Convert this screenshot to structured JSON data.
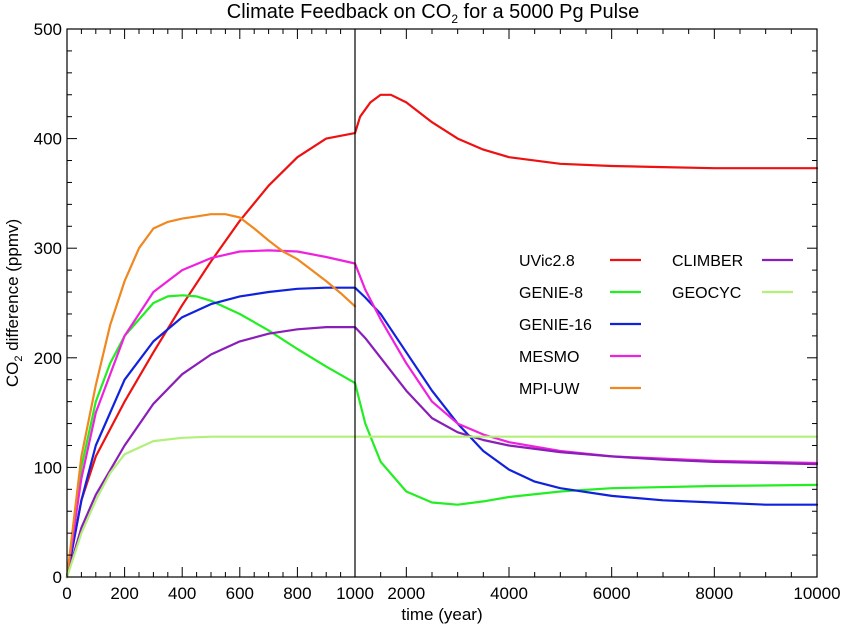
{
  "chart_data": {
    "type": "line",
    "title": "Climate Feedback on CO",
    "title_sub": "2",
    "title_rest": " for a 5000 Pg Pulse",
    "xlabel": "time (year)",
    "ylabel_pre": "CO",
    "ylabel_sub": "2",
    "ylabel_post": " difference (ppmv)",
    "ylim": [
      0,
      500
    ],
    "yticks": [
      "0",
      "100",
      "200",
      "300",
      "400",
      "500"
    ],
    "left_panel": {
      "xlim": [
        0,
        1000
      ],
      "ticks": [
        "0",
        "200",
        "400",
        "600",
        "800",
        "1000"
      ]
    },
    "right_panel": {
      "xlim": [
        1000,
        10000
      ],
      "ticks": [
        "2000",
        "4000",
        "6000",
        "8000",
        "10000"
      ]
    },
    "series": [
      {
        "name": "UVic2.8",
        "color": "#ee1111",
        "x": [
          0,
          50,
          100,
          200,
          300,
          400,
          500,
          600,
          700,
          800,
          900,
          1000,
          1100,
          1300,
          1500,
          1700,
          2000,
          2500,
          3000,
          3500,
          4000,
          5000,
          6000,
          7000,
          8000,
          9000,
          10000
        ],
        "y": [
          0,
          70,
          110,
          160,
          205,
          248,
          288,
          325,
          357,
          383,
          400,
          405,
          420,
          433,
          440,
          440,
          433,
          415,
          400,
          390,
          383,
          377,
          375,
          374,
          373,
          373,
          373
        ]
      },
      {
        "name": "GENIE-8",
        "color": "#22ee22",
        "x": [
          0,
          50,
          100,
          150,
          200,
          300,
          350,
          400,
          450,
          500,
          600,
          700,
          800,
          900,
          1000,
          1200,
          1500,
          2000,
          2500,
          3000,
          3500,
          4000,
          5000,
          6000,
          8000,
          10000
        ],
        "y": [
          0,
          100,
          160,
          195,
          220,
          250,
          256,
          257,
          256,
          252,
          240,
          225,
          208,
          192,
          177,
          140,
          105,
          78,
          68,
          66,
          69,
          73,
          78,
          81,
          83,
          84
        ]
      },
      {
        "name": "GENIE-16",
        "color": "#1122dd",
        "x": [
          0,
          50,
          100,
          200,
          300,
          400,
          500,
          600,
          700,
          800,
          900,
          1000,
          1200,
          1500,
          2000,
          2500,
          3000,
          3500,
          4000,
          4500,
          5000,
          6000,
          7000,
          8000,
          9000,
          10000
        ],
        "y": [
          0,
          70,
          120,
          180,
          215,
          237,
          249,
          256,
          260,
          263,
          264,
          264,
          255,
          240,
          205,
          170,
          140,
          115,
          98,
          87,
          81,
          74,
          70,
          68,
          66,
          66
        ]
      },
      {
        "name": "MESMO",
        "color": "#ee22dd",
        "x": [
          0,
          50,
          100,
          200,
          300,
          400,
          500,
          600,
          700,
          800,
          900,
          1000,
          1200,
          1500,
          2000,
          2500,
          3000,
          3500,
          4000,
          5000,
          6000,
          8000,
          10000
        ],
        "y": [
          0,
          90,
          150,
          220,
          260,
          280,
          291,
          297,
          298,
          297,
          292,
          286,
          262,
          235,
          195,
          160,
          140,
          130,
          123,
          115,
          110,
          106,
          104
        ]
      },
      {
        "name": "MPI-UW",
        "color": "#f08820",
        "x": [
          0,
          50,
          100,
          150,
          200,
          250,
          300,
          350,
          400,
          450,
          500,
          550,
          600,
          650,
          700,
          750,
          800,
          850,
          900,
          950,
          1000
        ],
        "y": [
          0,
          110,
          175,
          230,
          270,
          300,
          318,
          324,
          327,
          329,
          331,
          331,
          328,
          318,
          307,
          297,
          290,
          280,
          270,
          259,
          247
        ]
      },
      {
        "name": "CLIMBER",
        "color": "#8a1eb8",
        "x": [
          0,
          50,
          100,
          200,
          300,
          400,
          500,
          600,
          700,
          800,
          900,
          950,
          1000,
          1200,
          1500,
          2000,
          2500,
          3000,
          3500,
          4000,
          5000,
          6000,
          7000,
          8000,
          9000,
          10000
        ],
        "y": [
          0,
          45,
          75,
          120,
          158,
          185,
          203,
          215,
          222,
          226,
          228,
          228,
          228,
          218,
          200,
          170,
          145,
          132,
          125,
          120,
          114,
          110,
          107,
          105,
          104,
          103
        ]
      },
      {
        "name": "GEOCYC",
        "color": "#b2f07a",
        "x": [
          0,
          50,
          100,
          150,
          200,
          300,
          400,
          500,
          600,
          700,
          800,
          1000,
          2000,
          4000,
          6000,
          8000,
          10000
        ],
        "y": [
          0,
          40,
          70,
          95,
          112,
          124,
          127,
          128,
          128,
          128,
          128,
          128,
          128,
          128,
          128,
          128,
          128
        ]
      }
    ]
  }
}
